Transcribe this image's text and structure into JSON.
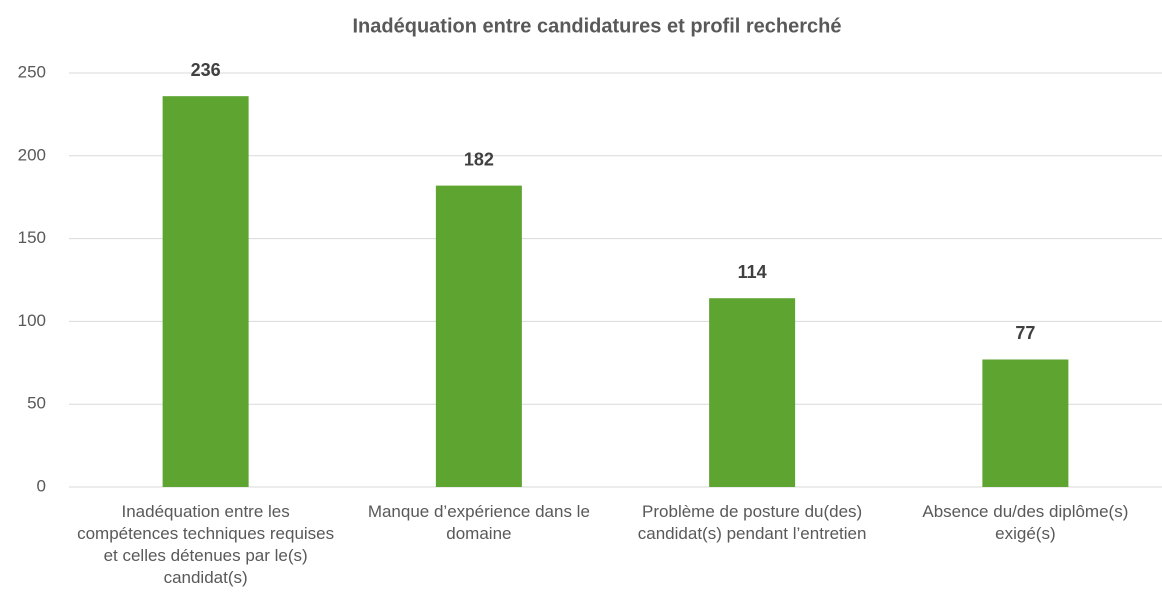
{
  "chart_data": {
    "type": "bar",
    "title": "Inadéquation entre candidatures et profil recherché",
    "categories": [
      "Inadéquation entre les compétences techniques requises et celles détenues par le(s) candidat(s)",
      "Manque d’expérience dans le domaine",
      "Problème de posture du(des) candidat(s) pendant l’entretien",
      "Absence du/des diplôme(s) exigé(s)"
    ],
    "values": [
      236,
      182,
      114,
      77
    ],
    "color": "#5ea431",
    "ylim": [
      0,
      250
    ],
    "yticks": [
      0,
      50,
      100,
      150,
      200,
      250
    ],
    "grid": true
  }
}
